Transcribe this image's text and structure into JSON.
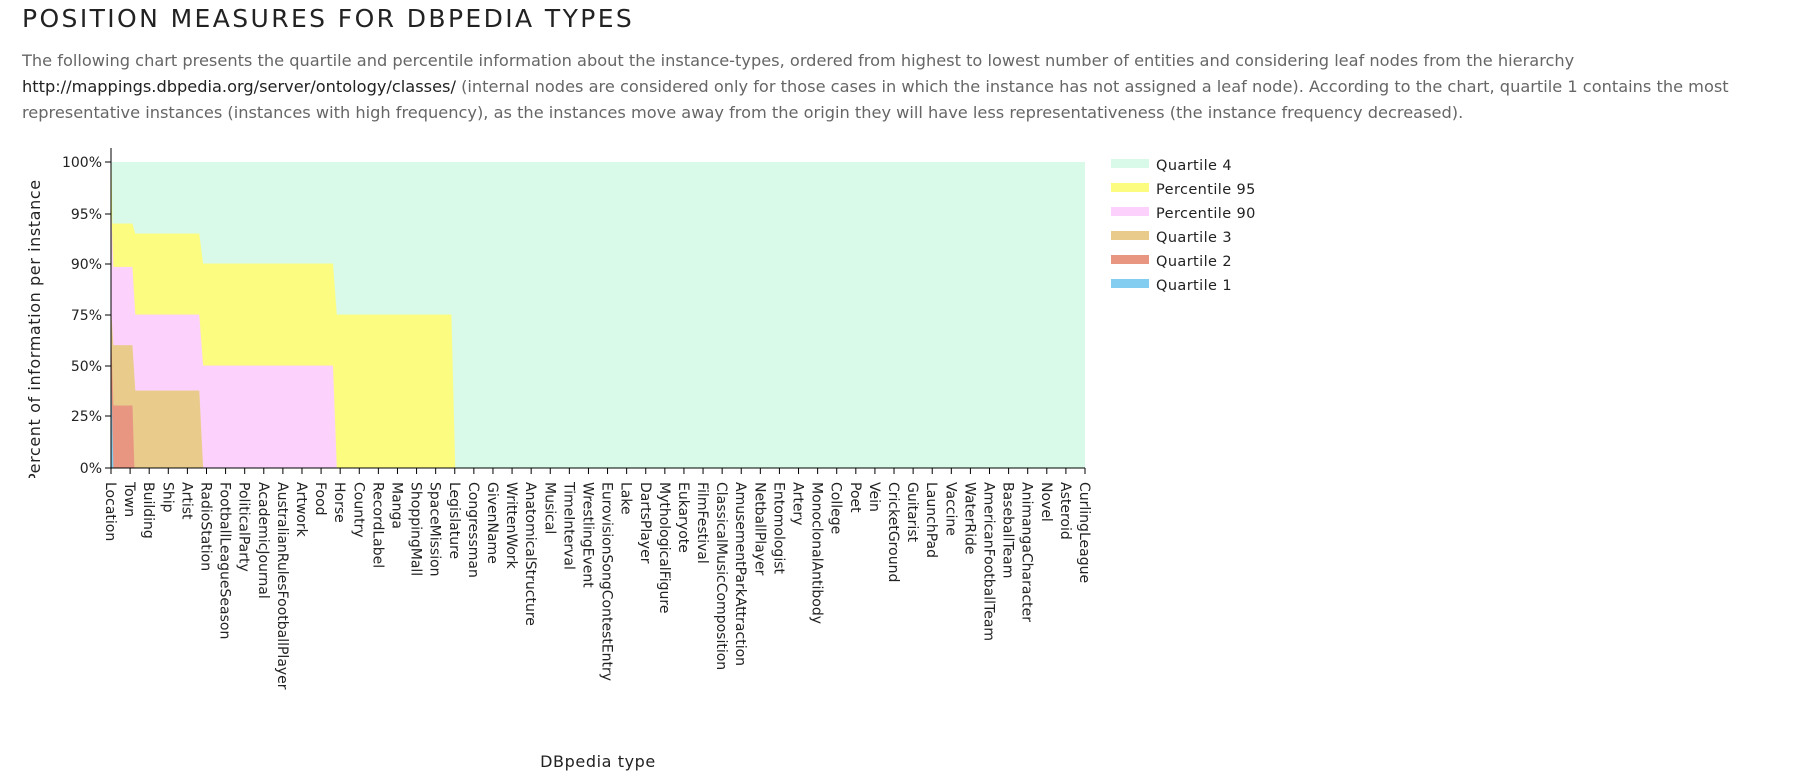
{
  "page": {
    "title": "POSITION MEASURES FOR DBPEDIA TYPES",
    "description_before_link": "The following chart presents the quartile and percentile information about the instance-types, ordered from highest to lowest number of entities and considering leaf nodes from the hierarchy ",
    "description_link": "http://mappings.dbpedia.org/server/ontology/classes/",
    "description_after_link": " (internal nodes are considered only for those cases in which the instance has not assigned a leaf node). According to the chart, quartile 1 contains the most representative instances (instances with high frequency), as the instances move away from the origin they will have less representativeness (the instance frequency decreased)."
  },
  "colors": {
    "quartile_4": "#d9fae8",
    "percentile_95": "#fcfc80",
    "percentile_90": "#fcd2fc",
    "quartile_3": "#e9cb8b",
    "quartile_2": "#e89582",
    "quartile_1": "#82cdf0"
  },
  "chart_data": {
    "type": "area",
    "xlabel": "DBpedia type",
    "ylabel": "Percent of information per instance",
    "y_ticks": [
      "0%",
      "25%",
      "50%",
      "75%",
      "90%",
      "95%",
      "100%"
    ],
    "y_tick_values": [
      0,
      25,
      50,
      75,
      90,
      95,
      100
    ],
    "y_scale": "piecewise (0-75 linear, then 90, 95, 100)",
    "grid": false,
    "legend_position": "right",
    "categories": [
      "Location",
      "Town",
      "Building",
      "Ship",
      "Artist",
      "RadioStation",
      "FootballLeagueSeason",
      "PoliticalParty",
      "AcademicJournal",
      "AustralianRulesFootballPlayer",
      "Artwork",
      "Food",
      "Horse",
      "Country",
      "RecordLabel",
      "Manga",
      "ShoppingMall",
      "SpaceMission",
      "Legislature",
      "Congressman",
      "GivenName",
      "WrittenWork",
      "AnatomicalStructure",
      "Musical",
      "TimeInterval",
      "WrestlingEvent",
      "EurovisionSongContestEntry",
      "Lake",
      "DartsPlayer",
      "MythologicalFigure",
      "Eukaryote",
      "FilmFestival",
      "ClassicalMusicComposition",
      "AmusementParkAttraction",
      "NetballPlayer",
      "Entomologist",
      "Artery",
      "MonoclonalAntibody",
      "College",
      "Poet",
      "Vein",
      "CricketGround",
      "Guitarist",
      "LaunchPad",
      "Vaccine",
      "WaterRide",
      "AmericanFootballTeam",
      "BaseballTeam",
      "AnimangaCharacter",
      "Novel",
      "Asteroid",
      "CurlingLeague"
    ],
    "x_extent": [
      0,
      51
    ],
    "series": [
      {
        "name": "Quartile 4",
        "color_key": "quartile_4",
        "points": [
          [
            0,
            100
          ],
          [
            51,
            100
          ]
        ]
      },
      {
        "name": "Percentile 95",
        "color_key": "percentile_95",
        "points": [
          [
            0,
            100
          ],
          [
            0.05,
            94
          ],
          [
            1.1,
            94
          ],
          [
            1.25,
            93
          ],
          [
            4.6,
            93
          ],
          [
            4.8,
            90
          ],
          [
            11.6,
            90
          ],
          [
            11.8,
            75
          ],
          [
            17.8,
            75
          ],
          [
            18.0,
            0
          ]
        ]
      },
      {
        "name": "Percentile 90",
        "color_key": "percentile_90",
        "points": [
          [
            0,
            95
          ],
          [
            0.1,
            89
          ],
          [
            1.1,
            89
          ],
          [
            1.25,
            75
          ],
          [
            4.6,
            75
          ],
          [
            4.8,
            50
          ],
          [
            11.6,
            50
          ],
          [
            11.8,
            0
          ]
        ]
      },
      {
        "name": "Quartile 3",
        "color_key": "quartile_3",
        "points": [
          [
            0,
            75
          ],
          [
            0.1,
            60
          ],
          [
            1.1,
            60
          ],
          [
            1.25,
            37.5
          ],
          [
            4.6,
            37.5
          ],
          [
            4.8,
            0
          ]
        ]
      },
      {
        "name": "Quartile 2",
        "color_key": "quartile_2",
        "points": [
          [
            0,
            60
          ],
          [
            0.1,
            30
          ],
          [
            1.1,
            30
          ],
          [
            1.2,
            0
          ]
        ]
      },
      {
        "name": "Quartile 1",
        "color_key": "quartile_1",
        "points": [
          [
            0,
            40
          ],
          [
            0.1,
            0
          ]
        ]
      }
    ]
  }
}
